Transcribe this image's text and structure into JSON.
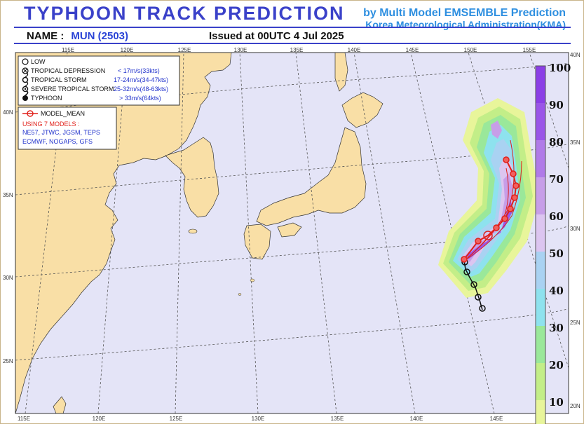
{
  "header": {
    "title": "TYPHOON  TRACK  PREDICTION",
    "subtitle_line1": "by Multi Model EMSEMBLE Prediction",
    "subtitle_line2": "Korea Meteorological Administration(KMA)",
    "name_label": "NAME :",
    "name_value": "MUN (2503)",
    "issued": "Issued at  00UTC  4 Jul 2025"
  },
  "map": {
    "top_lon_labels": [
      "115E",
      "120E",
      "125E",
      "130E",
      "135E",
      "140E",
      "145E",
      "150E",
      "155E"
    ],
    "bottom_lon_labels": [
      "115E",
      "120E",
      "125E",
      "130E",
      "135E",
      "140E",
      "145E"
    ],
    "left_lat_labels": [
      "40N",
      "35N",
      "30N",
      "25N"
    ],
    "right_lat_labels": [
      "40N",
      "35N",
      "30N",
      "25N",
      "20N"
    ],
    "colors": {
      "ocean": "#e4e4f7",
      "land": "#f9dfa6",
      "grid": "#555555",
      "track_mean": "#e0201a",
      "track_obs": "#111111"
    }
  },
  "legend": {
    "symbols": [
      {
        "name": "LOW",
        "speed": ""
      },
      {
        "name": "TROPICAL DEPRESSION",
        "speed": "< 17m/s(33kts)"
      },
      {
        "name": "TROPICAL STORM",
        "speed": "17-24m/s(34-47kts)"
      },
      {
        "name": "SEVERE TROPICAL STORM",
        "speed": "25-32m/s(48-63kts)"
      },
      {
        "name": "TYPHOON",
        "speed": "> 33m/s(64kts)"
      }
    ],
    "model_mean_label": "MODEL_MEAN",
    "models_heading": "USING 7 MODELS :",
    "models_line1": "NE57, JTWC, JGSM, TEPS",
    "models_line2": "ECMWF, NOGAPS, GFS"
  },
  "colorbar": {
    "labels": [
      "100",
      "90",
      "80",
      "70",
      "60",
      "50",
      "40",
      "30",
      "20",
      "10"
    ],
    "colors": [
      "#8b3fe6",
      "#9a55e8",
      "#b07ae8",
      "#c79ee8",
      "#dcc5f0",
      "#a9d2f2",
      "#8ee2ee",
      "#9ae89a",
      "#c3ee88",
      "#e8f59a"
    ]
  }
}
